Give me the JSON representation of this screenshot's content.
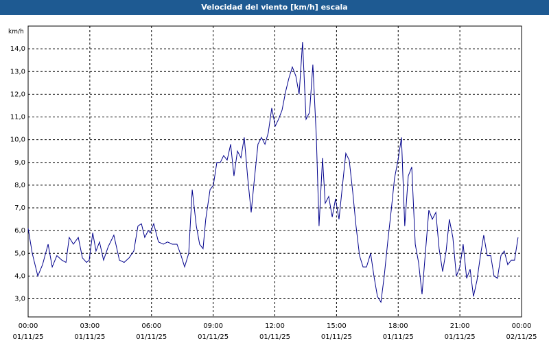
{
  "chart_data": {
    "type": "line",
    "title": "Velocidad del viento [km/h] escala",
    "y_unit": "km/h",
    "color": "#00008b",
    "grid": true,
    "x": [
      0,
      0.2,
      0.47,
      0.7,
      0.97,
      1.17,
      1.4,
      1.64,
      1.84,
      2.0,
      2.2,
      2.44,
      2.64,
      2.84,
      2.97,
      3.14,
      3.3,
      3.47,
      3.67,
      3.9,
      4.17,
      4.44,
      4.67,
      4.91,
      5.14,
      5.34,
      5.51,
      5.67,
      5.84,
      5.94,
      6.11,
      6.34,
      6.58,
      6.78,
      7.01,
      7.24,
      7.44,
      7.61,
      7.81,
      7.98,
      8.18,
      8.34,
      8.51,
      8.64,
      8.85,
      9.01,
      9.18,
      9.35,
      9.51,
      9.68,
      9.85,
      10.01,
      10.18,
      10.35,
      10.51,
      10.68,
      10.85,
      11.01,
      11.18,
      11.35,
      11.52,
      11.68,
      11.85,
      12.02,
      12.18,
      12.35,
      12.52,
      12.68,
      12.85,
      13.02,
      13.18,
      13.35,
      13.52,
      13.69,
      13.85,
      14.02,
      14.15,
      14.32,
      14.45,
      14.62,
      14.79,
      14.95,
      15.12,
      15.29,
      15.45,
      15.62,
      15.79,
      15.95,
      16.12,
      16.29,
      16.46,
      16.66,
      16.82,
      16.99,
      17.16,
      17.32,
      17.49,
      17.66,
      17.82,
      17.99,
      18.16,
      18.32,
      18.49,
      18.66,
      18.83,
      18.99,
      19.16,
      19.33,
      19.49,
      19.66,
      19.83,
      19.99,
      20.16,
      20.33,
      20.49,
      20.66,
      20.83,
      21.0,
      21.16,
      21.33,
      21.5,
      21.66,
      21.83,
      22.0,
      22.16,
      22.33,
      22.5,
      22.66,
      22.83,
      23.0,
      23.16,
      23.33,
      23.5,
      23.66,
      23.83
    ],
    "values": [
      6.1,
      5.0,
      4.0,
      4.5,
      5.4,
      4.4,
      4.9,
      4.7,
      4.6,
      5.7,
      5.4,
      5.7,
      4.8,
      4.6,
      4.7,
      5.9,
      5.1,
      5.5,
      4.7,
      5.3,
      5.8,
      4.7,
      4.6,
      4.8,
      5.1,
      6.2,
      6.3,
      5.7,
      6.0,
      5.9,
      6.3,
      5.5,
      5.4,
      5.5,
      5.4,
      5.4,
      4.9,
      4.4,
      5.0,
      7.8,
      6.2,
      5.4,
      5.2,
      6.5,
      7.8,
      8.0,
      9.0,
      9.0,
      9.3,
      9.1,
      9.8,
      8.4,
      9.5,
      9.2,
      10.1,
      8.3,
      6.8,
      8.3,
      9.8,
      10.1,
      9.8,
      10.3,
      11.4,
      10.6,
      10.9,
      11.3,
      12.1,
      12.7,
      13.2,
      12.8,
      12.0,
      14.3,
      10.9,
      11.2,
      13.3,
      10.1,
      6.2,
      9.2,
      7.2,
      7.5,
      6.6,
      7.4,
      6.5,
      8.0,
      9.4,
      9.1,
      7.7,
      6.2,
      4.9,
      4.4,
      4.4,
      5.0,
      4.0,
      3.1,
      2.85,
      4.0,
      5.5,
      6.9,
      8.3,
      9.1,
      10.1,
      6.2,
      8.4,
      8.8,
      5.4,
      4.6,
      3.2,
      5.1,
      6.9,
      6.5,
      6.8,
      5.2,
      4.2,
      5.1,
      6.5,
      5.7,
      4.0,
      4.4,
      5.4,
      3.9,
      4.3,
      3.1,
      3.8,
      4.9,
      5.8,
      4.9,
      4.9,
      4.0,
      3.9,
      4.9,
      5.1,
      4.5,
      4.7,
      4.7,
      5.7
    ],
    "xlim": [
      0,
      24
    ],
    "xticks": [
      {
        "value": 0,
        "label": "00:00",
        "date": "01/11/25"
      },
      {
        "value": 3,
        "label": "03:00",
        "date": "01/11/25"
      },
      {
        "value": 6,
        "label": "06:00",
        "date": "01/11/25"
      },
      {
        "value": 9,
        "label": "09:00",
        "date": "01/11/25"
      },
      {
        "value": 12,
        "label": "12:00",
        "date": "01/11/25"
      },
      {
        "value": 15,
        "label": "15:00",
        "date": "01/11/25"
      },
      {
        "value": 18,
        "label": "18:00",
        "date": "01/11/25"
      },
      {
        "value": 21,
        "label": "21:00",
        "date": "01/11/25"
      },
      {
        "value": 24,
        "label": "00:00",
        "date": "02/11/25"
      }
    ],
    "ylim": [
      2.2,
      15.0
    ],
    "yticks": [
      {
        "value": 3,
        "label": "3,0"
      },
      {
        "value": 4,
        "label": "4,0"
      },
      {
        "value": 5,
        "label": "5,0"
      },
      {
        "value": 6,
        "label": "6,0"
      },
      {
        "value": 7,
        "label": "7,0"
      },
      {
        "value": 8,
        "label": "8,0"
      },
      {
        "value": 9,
        "label": "9,0"
      },
      {
        "value": 10,
        "label": "10,0"
      },
      {
        "value": 11,
        "label": "11,0"
      },
      {
        "value": 12,
        "label": "12,0"
      },
      {
        "value": 13,
        "label": "13,0"
      },
      {
        "value": 14,
        "label": "14,0"
      }
    ]
  }
}
